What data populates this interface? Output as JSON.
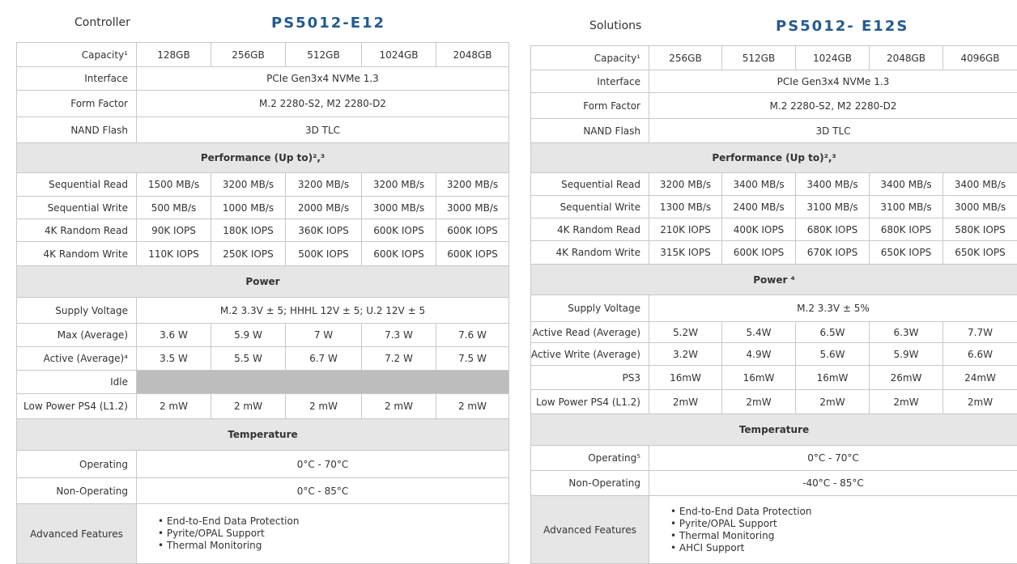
{
  "tables": [
    {
      "label": "Controller",
      "title": "PS5012-E12",
      "rows": [
        {
          "label": "Capacity¹",
          "cells": [
            "128GB",
            "256GB",
            "512GB",
            "1024GB",
            "2048GB"
          ]
        },
        {
          "label": "Interface",
          "value": "PCIe Gen3x4 NVMe 1.3"
        },
        {
          "label": "Form Factor",
          "value": "M.2 2280-S2, M2 2280-D2"
        },
        {
          "label": "NAND Flash",
          "value": "3D TLC"
        },
        {
          "section": "Performance (Up to)²,³"
        },
        {
          "label": "Sequential Read",
          "cells": [
            "1500 MB/s",
            "3200 MB/s",
            "3200 MB/s",
            "3200 MB/s",
            "3200 MB/s"
          ]
        },
        {
          "label": "Sequential Write",
          "cells": [
            "500 MB/s",
            "1000 MB/s",
            "2000 MB/s",
            "3000 MB/s",
            "3000 MB/s"
          ]
        },
        {
          "label": "4K Random Read",
          "cells": [
            "90K IOPS",
            "180K IOPS",
            "360K IOPS",
            "600K IOPS",
            "600K IOPS"
          ]
        },
        {
          "label": "4K Random Write",
          "cells": [
            "110K IOPS",
            "250K IOPS",
            "500K IOPS",
            "600K IOPS",
            "600K IOPS"
          ]
        },
        {
          "section": "Power"
        },
        {
          "label": "Supply Voltage",
          "value": "M.2 3.3V ± 5; HHHL 12V ± 5; U.2 12V ± 5"
        },
        {
          "label": "Max (Average)",
          "cells": [
            "3.6 W",
            "5.9 W",
            "7 W",
            "7.3 W",
            "7.6 W"
          ]
        },
        {
          "label": "Active (Average)⁴",
          "cells": [
            "3.5 W",
            "5.5 W",
            "6.7 W",
            "7.2 W",
            "7.5 W"
          ]
        },
        {
          "label": "Idle"
        },
        {
          "label": "Low Power PS4 (L1.2)",
          "cells": [
            "2 mW",
            "2 mW",
            "2 mW",
            "2 mW",
            "2 mW"
          ]
        },
        {
          "section": "Temperature"
        },
        {
          "label": "Operating",
          "value": "0°C - 70°C"
        },
        {
          "label": "Non-Operating",
          "value": "0°C - 85°C"
        },
        {
          "label": "Advanced Features",
          "items": [
            "End-to-End Data Protection",
            "Pyrite/OPAL Support",
            "Thermal Monitoring"
          ]
        }
      ]
    },
    {
      "label": "Solutions",
      "title": "PS5012- E12S",
      "rows": [
        {
          "label": "Capacity¹",
          "cells": [
            "256GB",
            "512GB",
            "1024GB",
            "2048GB",
            "4096GB"
          ]
        },
        {
          "label": "Interface",
          "value": "PCIe Gen3x4 NVMe 1.3"
        },
        {
          "label": "Form Factor",
          "value": "M.2 2280-S2, M2 2280-D2"
        },
        {
          "label": "NAND Flash",
          "value": "3D TLC"
        },
        {
          "section": "Performance (Up to)²,³"
        },
        {
          "label": "Sequential Read",
          "cells": [
            "3200 MB/s",
            "3400 MB/s",
            "3400 MB/s",
            "3400 MB/s",
            "3400 MB/s"
          ]
        },
        {
          "label": "Sequential Write",
          "cells": [
            "1300 MB/s",
            "2400 MB/s",
            "3100 MB/s",
            "3100 MB/s",
            "3000 MB/s"
          ]
        },
        {
          "label": "4K Random Read",
          "cells": [
            "210K IOPS",
            "400K IOPS",
            "680K IOPS",
            "680K IOPS",
            "580K IOPS"
          ]
        },
        {
          "label": "4K Random Write",
          "cells": [
            "315K IOPS",
            "600K IOPS",
            "670K IOPS",
            "650K IOPS",
            "650K IOPS"
          ]
        },
        {
          "section": "Power ⁴"
        },
        {
          "label": "Supply Voltage",
          "value": "M.2 3.3V ± 5%"
        },
        {
          "label": "Active Read (Average)",
          "cells": [
            "5.2W",
            "5.4W",
            "6.5W",
            "6.3W",
            "7.7W"
          ]
        },
        {
          "label": "Active Write (Average)",
          "cells": [
            "3.2W",
            "4.9W",
            "5.6W",
            "5.9W",
            "6.6W"
          ]
        },
        {
          "label": "PS3",
          "cells": [
            "16mW",
            "16mW",
            "16mW",
            "26mW",
            "24mW"
          ]
        },
        {
          "label": "Low Power PS4 (L1.2)",
          "cells": [
            "2mW",
            "2mW",
            "2mW",
            "2mW",
            "2mW"
          ]
        },
        {
          "section": "Temperature"
        },
        {
          "label": "Operating⁵",
          "value": "0°C - 70°C"
        },
        {
          "label": "Non-Operating",
          "value": "-40°C - 85°C"
        },
        {
          "label": "Advanced Features",
          "items": [
            "End-to-End Data Protection",
            "Pyrite/OPAL Support",
            "Thermal Monitoring",
            "AHCI Support"
          ]
        }
      ]
    }
  ]
}
